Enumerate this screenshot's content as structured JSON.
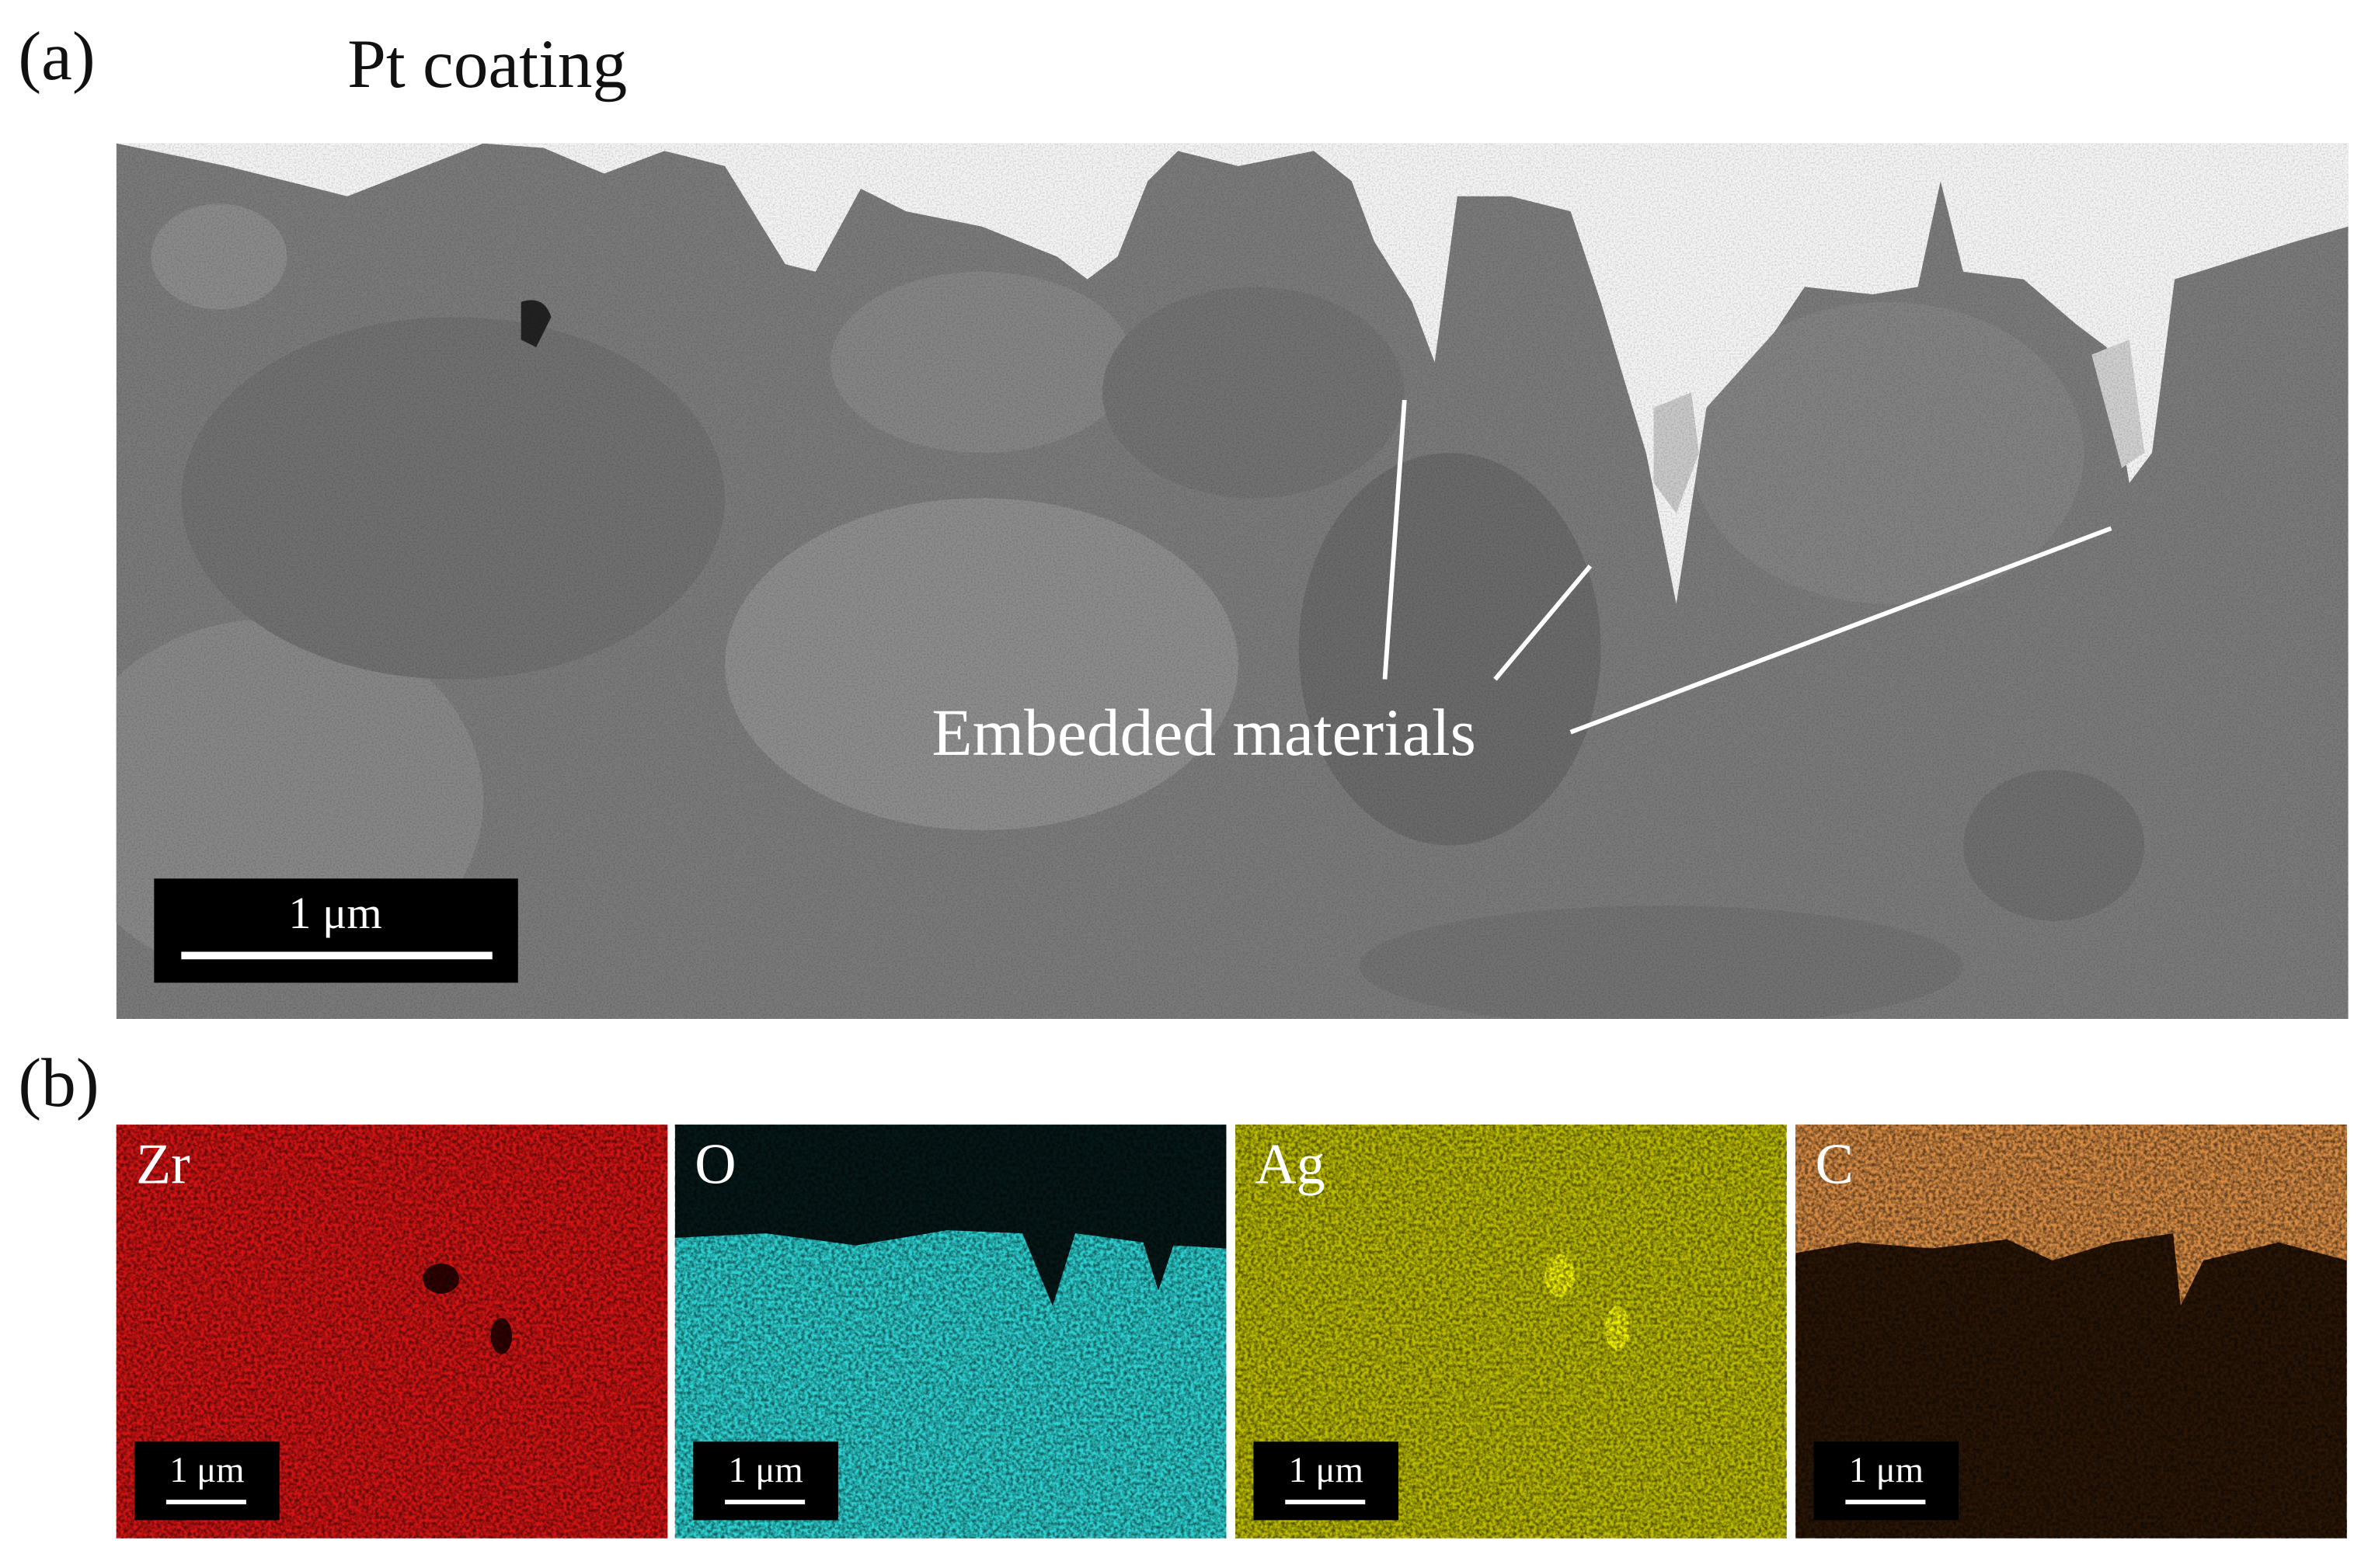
{
  "panel_a": {
    "label": "(a)",
    "coating_label": "Pt coating",
    "annotation": "Embedded materials",
    "scale_bar": "1 μm"
  },
  "panel_b": {
    "label": "(b)",
    "maps": [
      {
        "element": "Zr",
        "scale_bar": "1 μm"
      },
      {
        "element": "O",
        "scale_bar": "1 μm"
      },
      {
        "element": "Ag",
        "scale_bar": "1 μm"
      },
      {
        "element": "C",
        "scale_bar": "1 μm"
      }
    ]
  }
}
